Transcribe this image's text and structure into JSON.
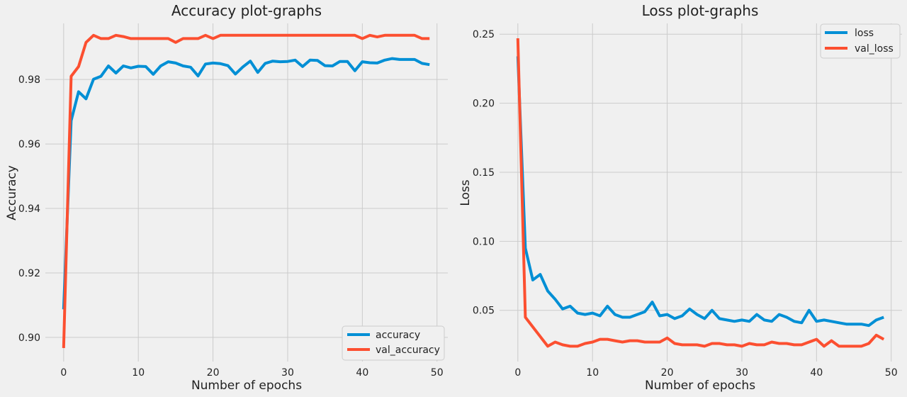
{
  "chart_data": [
    {
      "type": "line",
      "title": "Accuracy plot-graphs",
      "xlabel": "Number of epochs",
      "ylabel": "Accuracy",
      "xlim": [
        -2.45,
        51.45
      ],
      "ylim": [
        0.8925,
        0.9974
      ],
      "xticks": [
        0,
        10,
        20,
        30,
        40,
        50
      ],
      "yticks": [
        0.9,
        0.92,
        0.94,
        0.96,
        0.98
      ],
      "ytick_labels": [
        "0.90",
        "0.92",
        "0.94",
        "0.96",
        "0.98"
      ],
      "grid": true,
      "legend_position": "lower-right",
      "x": [
        0,
        1,
        2,
        3,
        4,
        5,
        6,
        7,
        8,
        9,
        10,
        11,
        12,
        13,
        14,
        15,
        16,
        17,
        18,
        19,
        20,
        21,
        22,
        23,
        24,
        25,
        26,
        27,
        28,
        29,
        30,
        31,
        32,
        33,
        34,
        35,
        36,
        37,
        38,
        39,
        40,
        41,
        42,
        43,
        44,
        45,
        46,
        47,
        48,
        49
      ],
      "series": [
        {
          "name": "accuracy",
          "color": "#008fd5",
          "values": [
            0.9087,
            0.9672,
            0.9762,
            0.974,
            0.9801,
            0.981,
            0.9842,
            0.982,
            0.9842,
            0.9836,
            0.9841,
            0.984,
            0.9816,
            0.9842,
            0.9855,
            0.9851,
            0.9842,
            0.9838,
            0.9811,
            0.9848,
            0.9851,
            0.9849,
            0.9843,
            0.9817,
            0.9839,
            0.9857,
            0.9822,
            0.985,
            0.9857,
            0.9855,
            0.9856,
            0.986,
            0.984,
            0.986,
            0.9859,
            0.9843,
            0.9842,
            0.9856,
            0.9856,
            0.9827,
            0.9855,
            0.9852,
            0.9851,
            0.986,
            0.9865,
            0.9862,
            0.9862,
            0.9862,
            0.985,
            0.9846
          ]
        },
        {
          "name": "val_accuracy",
          "color": "#fc4f30",
          "values": [
            0.8967,
            0.981,
            0.984,
            0.9915,
            0.9937,
            0.9927,
            0.9927,
            0.9937,
            0.9933,
            0.9927,
            0.9927,
            0.9927,
            0.9927,
            0.9927,
            0.9927,
            0.9915,
            0.9927,
            0.9927,
            0.9927,
            0.9937,
            0.9927,
            0.9937,
            0.9937,
            0.9937,
            0.9937,
            0.9937,
            0.9937,
            0.9937,
            0.9937,
            0.9937,
            0.9937,
            0.9937,
            0.9937,
            0.9937,
            0.9937,
            0.9937,
            0.9937,
            0.9937,
            0.9937,
            0.9937,
            0.9927,
            0.9937,
            0.9932,
            0.9937,
            0.9937,
            0.9937,
            0.9937,
            0.9937,
            0.9927,
            0.9927
          ]
        }
      ]
    },
    {
      "type": "line",
      "title": "Loss plot-graphs",
      "xlabel": "Number of epochs",
      "ylabel": "Loss",
      "xlim": [
        -2.45,
        51.45
      ],
      "ylim": [
        0.0129,
        0.2578
      ],
      "xticks": [
        0,
        10,
        20,
        30,
        40,
        50
      ],
      "yticks": [
        0.05,
        0.1,
        0.15,
        0.2,
        0.25
      ],
      "ytick_labels": [
        "0.05",
        "0.10",
        "0.15",
        "0.20",
        "0.25"
      ],
      "grid": true,
      "legend_position": "top-right",
      "x": [
        0,
        1,
        2,
        3,
        4,
        5,
        6,
        7,
        8,
        9,
        10,
        11,
        12,
        13,
        14,
        15,
        16,
        17,
        18,
        19,
        20,
        21,
        22,
        23,
        24,
        25,
        26,
        27,
        28,
        29,
        30,
        31,
        32,
        33,
        34,
        35,
        36,
        37,
        38,
        39,
        40,
        41,
        42,
        43,
        44,
        45,
        46,
        47,
        48,
        49
      ],
      "series": [
        {
          "name": "loss",
          "color": "#008fd5",
          "values": [
            0.234,
            0.095,
            0.072,
            0.076,
            0.064,
            0.058,
            0.051,
            0.053,
            0.048,
            0.047,
            0.048,
            0.046,
            0.053,
            0.047,
            0.045,
            0.045,
            0.047,
            0.049,
            0.056,
            0.046,
            0.047,
            0.044,
            0.046,
            0.051,
            0.047,
            0.044,
            0.05,
            0.044,
            0.043,
            0.042,
            0.043,
            0.042,
            0.047,
            0.043,
            0.042,
            0.047,
            0.045,
            0.042,
            0.041,
            0.05,
            0.042,
            0.043,
            0.042,
            0.041,
            0.04,
            0.04,
            0.04,
            0.039,
            0.043,
            0.045
          ]
        },
        {
          "name": "val_loss",
          "color": "#fc4f30",
          "values": [
            0.247,
            0.045,
            0.038,
            0.031,
            0.024,
            0.027,
            0.025,
            0.024,
            0.024,
            0.026,
            0.027,
            0.029,
            0.029,
            0.028,
            0.027,
            0.028,
            0.028,
            0.027,
            0.027,
            0.027,
            0.03,
            0.026,
            0.025,
            0.025,
            0.025,
            0.024,
            0.026,
            0.026,
            0.025,
            0.025,
            0.024,
            0.026,
            0.025,
            0.025,
            0.027,
            0.026,
            0.026,
            0.025,
            0.025,
            0.027,
            0.029,
            0.024,
            0.028,
            0.024,
            0.024,
            0.024,
            0.024,
            0.026,
            0.032,
            0.029
          ]
        }
      ]
    }
  ]
}
